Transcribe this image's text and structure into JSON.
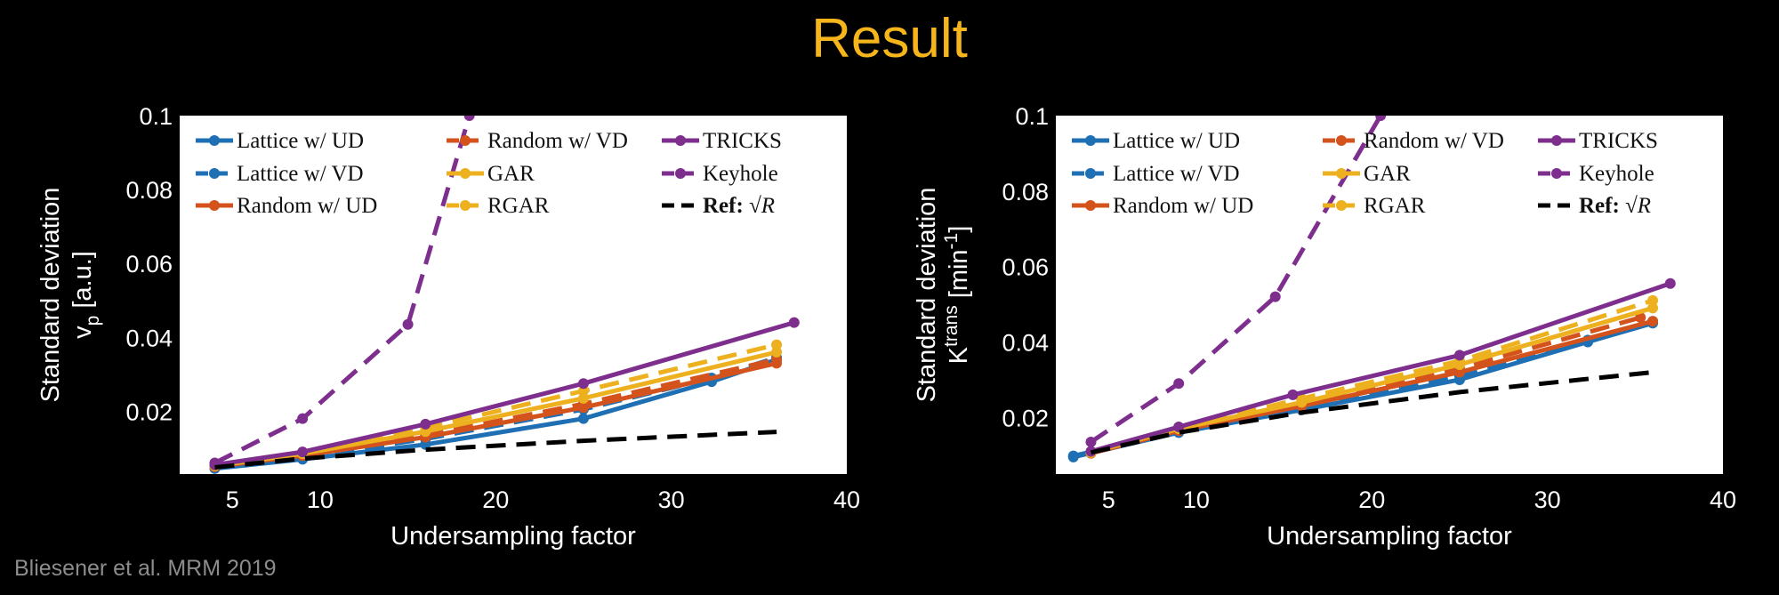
{
  "slide": {
    "title": "Result",
    "credit": "Bliesener et al. MRM 2019",
    "title_color": "#F5B51B"
  },
  "colors": {
    "blue": "#1F6FB4",
    "red": "#D4531C",
    "yellow": "#EDB120",
    "purple": "#7E2F8E",
    "black": "#000000"
  },
  "legend": {
    "series_labels": [
      "Lattice w/ UD",
      "Lattice w/ VD",
      "Random w/ UD",
      "Random w/ VD",
      "GAR",
      "RGAR",
      "TRICKS",
      "Keyhole"
    ],
    "ref_label": "Ref:",
    "ref_math": "√R"
  },
  "chart_data": [
    {
      "type": "line",
      "xlabel": "Undersampling factor",
      "ylabel_line1": "Standard deviation",
      "ylabel_line2": "v_p [a.u.]",
      "xlim": [
        2,
        40
      ],
      "ylim": [
        0.003,
        0.1
      ],
      "xticks": [
        5,
        10,
        20,
        30,
        40
      ],
      "yticks": [
        0.02,
        0.04,
        0.06,
        0.08,
        0.1
      ],
      "legend_position": "top-left",
      "series": [
        {
          "name": "Lattice w/ UD",
          "color": "blue",
          "dash": false,
          "x": [
            4,
            9,
            16,
            25,
            32.3,
            36
          ],
          "y": [
            0.0045,
            0.007,
            0.011,
            0.018,
            0.028,
            0.034
          ]
        },
        {
          "name": "Lattice w/ VD",
          "color": "blue",
          "dash": true,
          "x": [
            4,
            9,
            16,
            25,
            32.3,
            36
          ],
          "y": [
            0.0048,
            0.0075,
            0.0125,
            0.0205,
            0.029,
            0.0345
          ]
        },
        {
          "name": "Random w/ UD",
          "color": "red",
          "dash": false,
          "x": [
            4,
            9,
            16,
            25,
            36
          ],
          "y": [
            0.005,
            0.008,
            0.013,
            0.021,
            0.033
          ]
        },
        {
          "name": "Random w/ VD",
          "color": "red",
          "dash": true,
          "x": [
            4,
            9,
            16,
            25,
            36
          ],
          "y": [
            0.005,
            0.0082,
            0.0135,
            0.022,
            0.034
          ]
        },
        {
          "name": "GAR",
          "color": "yellow",
          "dash": false,
          "x": [
            4,
            9,
            16,
            25,
            36
          ],
          "y": [
            0.0052,
            0.0085,
            0.0145,
            0.0235,
            0.036
          ]
        },
        {
          "name": "RGAR",
          "color": "yellow",
          "dash": true,
          "x": [
            4,
            9,
            16,
            25,
            36
          ],
          "y": [
            0.0053,
            0.0088,
            0.0155,
            0.0255,
            0.038
          ]
        },
        {
          "name": "TRICKS",
          "color": "purple",
          "dash": false,
          "x": [
            4,
            9,
            16,
            25,
            37
          ],
          "y": [
            0.0055,
            0.009,
            0.0165,
            0.0275,
            0.044
          ]
        },
        {
          "name": "Keyhole",
          "color": "purple",
          "dash": true,
          "x": [
            4,
            9,
            15,
            18.5
          ],
          "y": [
            0.006,
            0.018,
            0.0435,
            0.1
          ]
        },
        {
          "name": "Ref: √R",
          "color": "black",
          "dash": true,
          "markers": false,
          "x": [
            4,
            9,
            16,
            25,
            36
          ],
          "y": [
            0.0048,
            0.0072,
            0.0096,
            0.012,
            0.0144
          ]
        }
      ]
    },
    {
      "type": "line",
      "xlabel": "Undersampling factor",
      "ylabel_line1": "Standard deviation",
      "ylabel_line2": "K^trans [min^-1]",
      "xlim": [
        2,
        40
      ],
      "ylim": [
        0.005,
        0.1
      ],
      "xticks": [
        5,
        10,
        20,
        30,
        40
      ],
      "yticks": [
        0.02,
        0.04,
        0.06,
        0.08,
        0.1
      ],
      "legend_position": "top-left",
      "series": [
        {
          "name": "Lattice w/ UD",
          "color": "blue",
          "dash": false,
          "x": [
            3,
            9,
            16,
            25,
            32.3,
            36
          ],
          "y": [
            0.0095,
            0.016,
            0.022,
            0.03,
            0.04,
            0.045
          ]
        },
        {
          "name": "Lattice w/ VD",
          "color": "blue",
          "dash": true,
          "x": [
            3,
            9,
            16,
            25,
            32.3,
            36
          ],
          "y": [
            0.0098,
            0.0163,
            0.0225,
            0.031,
            0.0405,
            0.0455
          ]
        },
        {
          "name": "Random w/ UD",
          "color": "red",
          "dash": false,
          "x": [
            4,
            9,
            16,
            25,
            36
          ],
          "y": [
            0.0105,
            0.0165,
            0.023,
            0.032,
            0.0455
          ]
        },
        {
          "name": "Random w/ VD",
          "color": "red",
          "dash": true,
          "x": [
            4,
            9,
            16,
            25,
            35.3
          ],
          "y": [
            0.0106,
            0.0168,
            0.0235,
            0.033,
            0.0465
          ]
        },
        {
          "name": "GAR",
          "color": "yellow",
          "dash": false,
          "x": [
            4,
            9,
            16,
            25,
            36
          ],
          "y": [
            0.0107,
            0.017,
            0.024,
            0.034,
            0.049
          ]
        },
        {
          "name": "RGAR",
          "color": "yellow",
          "dash": true,
          "x": [
            4,
            9,
            16,
            25,
            36
          ],
          "y": [
            0.0108,
            0.0172,
            0.025,
            0.035,
            0.051
          ]
        },
        {
          "name": "TRICKS",
          "color": "purple",
          "dash": false,
          "x": [
            4,
            9,
            15.5,
            25,
            37
          ],
          "y": [
            0.011,
            0.0175,
            0.026,
            0.0365,
            0.0555
          ]
        },
        {
          "name": "Keyhole",
          "color": "purple",
          "dash": true,
          "x": [
            4,
            9,
            14.5,
            20.5
          ],
          "y": [
            0.0135,
            0.029,
            0.052,
            0.1
          ]
        },
        {
          "name": "Ref: √R",
          "color": "black",
          "dash": true,
          "markers": false,
          "x": [
            4,
            9,
            16,
            25,
            36
          ],
          "y": [
            0.0107,
            0.016,
            0.0213,
            0.0267,
            0.032
          ]
        }
      ]
    }
  ]
}
